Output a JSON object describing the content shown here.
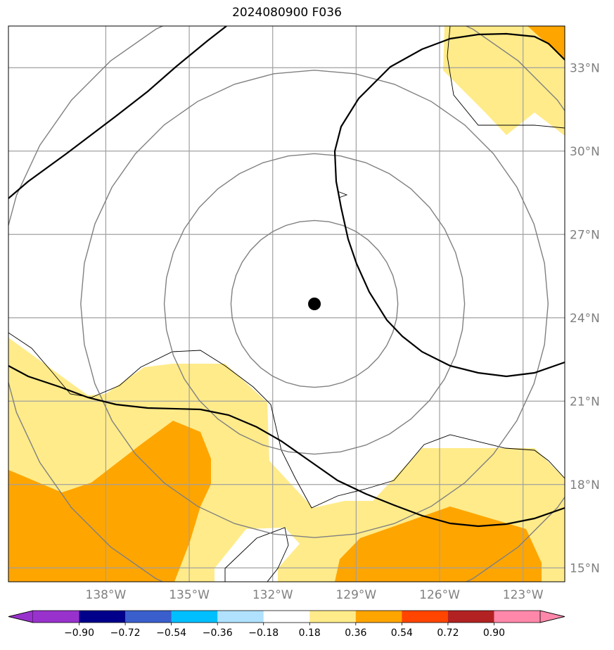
{
  "title": "2024080900 F036",
  "map": {
    "lon_range": [
      -141.5,
      -121.5
    ],
    "lat_range": [
      14.5,
      34.5
    ],
    "lon_ticks": [
      {
        "value": -138,
        "label": "138°W"
      },
      {
        "value": -135,
        "label": "135°W"
      },
      {
        "value": -132,
        "label": "132°W"
      },
      {
        "value": -129,
        "label": "129°W"
      },
      {
        "value": -126,
        "label": "126°W"
      },
      {
        "value": -123,
        "label": "123°W"
      }
    ],
    "lat_ticks": [
      {
        "value": 15,
        "label": "15°N"
      },
      {
        "value": 18,
        "label": "18°N"
      },
      {
        "value": 21,
        "label": "21°N"
      },
      {
        "value": 24,
        "label": "24°N"
      },
      {
        "value": 27,
        "label": "27°N"
      },
      {
        "value": 30,
        "label": "30°N"
      },
      {
        "value": 33,
        "label": "33°N"
      }
    ],
    "gridlines": true,
    "center_marker": {
      "lon": -130.5,
      "lat": 24.5
    },
    "range_rings_deg": [
      3,
      5.4,
      8.4,
      11.4
    ],
    "colors": {
      "light": "#ffeb8a",
      "orange": "#ffa500",
      "grid": "#a0a0a0",
      "ring": "#808080"
    }
  },
  "colorbar": {
    "ticks": [
      "−0.90",
      "−0.72",
      "−0.54",
      "−0.36",
      "−0.18",
      "0.18",
      "0.36",
      "0.54",
      "0.72",
      "0.90"
    ],
    "colors": [
      "#9932cc",
      "#00008b",
      "#3a5fcd",
      "#00bfff",
      "#b0e2ff",
      "#ffffff",
      "#ffeb8a",
      "#ffa500",
      "#ff4500",
      "#b22222",
      "#ff88aa",
      "#ff88aa"
    ]
  }
}
